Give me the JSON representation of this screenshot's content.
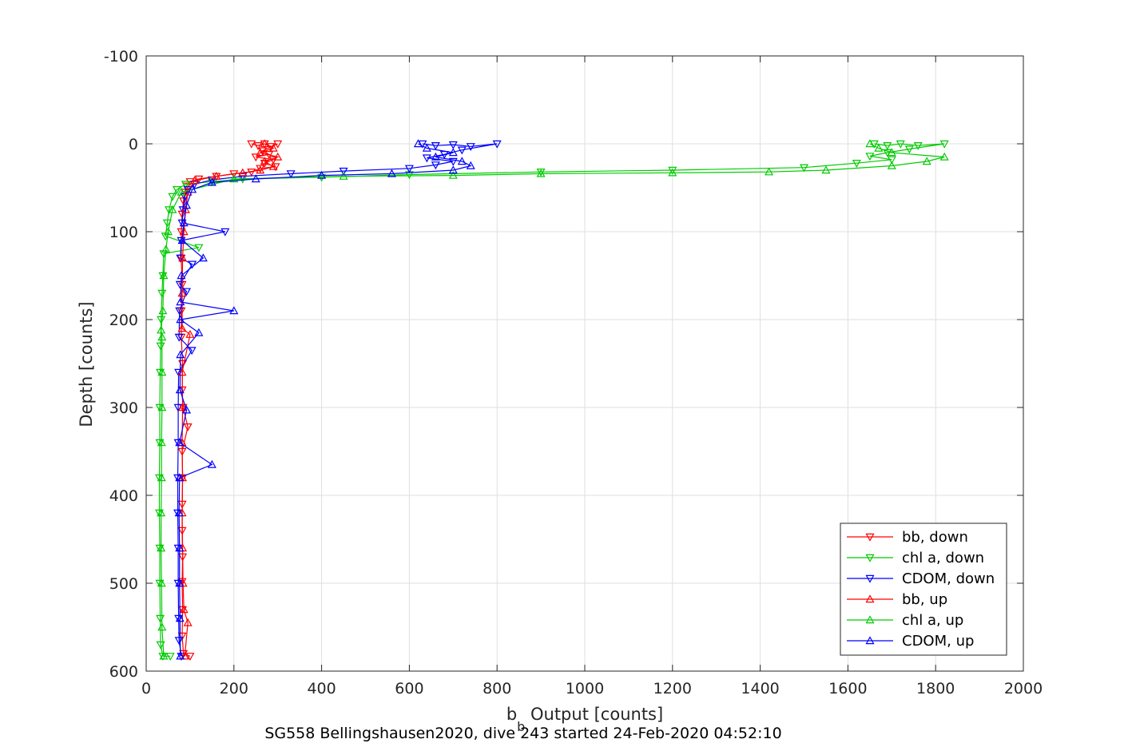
{
  "chart_data": {
    "type": "line",
    "title": "",
    "caption": "SG558 Bellingshausen2020, dive 243 started 24-Feb-2020 04:52:10",
    "xlabel_main": "b",
    "xlabel_sub": "b",
    "xlabel_rest": " Output [counts]",
    "ylabel": "Depth [counts]",
    "xlim": [
      0,
      2000
    ],
    "ylim": [
      -100,
      600
    ],
    "y_reversed": true,
    "grid": true,
    "legend_position": "bottom-right",
    "xticks": [
      "0",
      "200",
      "400",
      "600",
      "800",
      "1000",
      "1200",
      "1400",
      "1600",
      "1800",
      "2000"
    ],
    "yticks": [
      "-100",
      "0",
      "100",
      "200",
      "300",
      "400",
      "500",
      "600"
    ],
    "series": [
      {
        "name": "bb, down",
        "color": "#ff0000",
        "marker": "triangle-down",
        "points": [
          [
            240,
            0
          ],
          [
            255,
            2
          ],
          [
            270,
            0
          ],
          [
            285,
            3
          ],
          [
            300,
            0
          ],
          [
            265,
            8
          ],
          [
            280,
            12
          ],
          [
            250,
            15
          ],
          [
            290,
            18
          ],
          [
            270,
            22
          ],
          [
            295,
            26
          ],
          [
            260,
            28
          ],
          [
            240,
            32
          ],
          [
            200,
            34
          ],
          [
            160,
            37
          ],
          [
            120,
            40
          ],
          [
            100,
            43
          ],
          [
            92,
            48
          ],
          [
            88,
            55
          ],
          [
            85,
            65
          ],
          [
            82,
            80
          ],
          [
            80,
            100
          ],
          [
            80,
            130
          ],
          [
            82,
            160
          ],
          [
            80,
            190
          ],
          [
            80,
            220
          ],
          [
            83,
            250
          ],
          [
            82,
            280
          ],
          [
            84,
            300
          ],
          [
            95,
            322
          ],
          [
            82,
            350
          ],
          [
            83,
            380
          ],
          [
            82,
            410
          ],
          [
            82,
            440
          ],
          [
            83,
            470
          ],
          [
            82,
            498
          ],
          [
            83,
            530
          ],
          [
            82,
            560
          ],
          [
            85,
            580
          ],
          [
            100,
            583
          ]
        ]
      },
      {
        "name": "chl a, down",
        "color": "#00cc00",
        "marker": "triangle-down",
        "points": [
          [
            1660,
            0
          ],
          [
            1690,
            2
          ],
          [
            1720,
            0
          ],
          [
            1760,
            2
          ],
          [
            1820,
            0
          ],
          [
            1740,
            6
          ],
          [
            1690,
            10
          ],
          [
            1650,
            14
          ],
          [
            1700,
            18
          ],
          [
            1620,
            22
          ],
          [
            1500,
            27
          ],
          [
            1200,
            30
          ],
          [
            900,
            32
          ],
          [
            600,
            35
          ],
          [
            400,
            38
          ],
          [
            220,
            40
          ],
          [
            150,
            43
          ],
          [
            90,
            46
          ],
          [
            70,
            52
          ],
          [
            60,
            60
          ],
          [
            52,
            75
          ],
          [
            48,
            90
          ],
          [
            44,
            105
          ],
          [
            120,
            118
          ],
          [
            40,
            125
          ],
          [
            38,
            150
          ],
          [
            36,
            170
          ],
          [
            34,
            200
          ],
          [
            33,
            230
          ],
          [
            32,
            260
          ],
          [
            31,
            300
          ],
          [
            31,
            340
          ],
          [
            30,
            380
          ],
          [
            30,
            420
          ],
          [
            31,
            460
          ],
          [
            31,
            500
          ],
          [
            32,
            540
          ],
          [
            33,
            570
          ],
          [
            38,
            583
          ],
          [
            55,
            583
          ]
        ]
      },
      {
        "name": "CDOM, down",
        "color": "#0000ff",
        "marker": "triangle-down",
        "points": [
          [
            630,
            0
          ],
          [
            660,
            2
          ],
          [
            700,
            1
          ],
          [
            740,
            3
          ],
          [
            800,
            0
          ],
          [
            720,
            7
          ],
          [
            680,
            12
          ],
          [
            640,
            16
          ],
          [
            700,
            20
          ],
          [
            660,
            24
          ],
          [
            600,
            28
          ],
          [
            450,
            31
          ],
          [
            330,
            34
          ],
          [
            220,
            37
          ],
          [
            150,
            41
          ],
          [
            110,
            46
          ],
          [
            95,
            52
          ],
          [
            88,
            60
          ],
          [
            84,
            75
          ],
          [
            82,
            90
          ],
          [
            180,
            100
          ],
          [
            80,
            110
          ],
          [
            78,
            130
          ],
          [
            105,
            137
          ],
          [
            77,
            160
          ],
          [
            92,
            168
          ],
          [
            76,
            190
          ],
          [
            75,
            220
          ],
          [
            104,
            235
          ],
          [
            74,
            260
          ],
          [
            73,
            300
          ],
          [
            73,
            340
          ],
          [
            72,
            380
          ],
          [
            72,
            420
          ],
          [
            73,
            460
          ],
          [
            73,
            500
          ],
          [
            74,
            540
          ],
          [
            75,
            565
          ],
          [
            80,
            583
          ]
        ]
      },
      {
        "name": "bb, up",
        "color": "#ff0000",
        "marker": "triangle-up",
        "points": [
          [
            88,
            583
          ],
          [
            95,
            545
          ],
          [
            86,
            530
          ],
          [
            84,
            500
          ],
          [
            83,
            460
          ],
          [
            82,
            420
          ],
          [
            83,
            380
          ],
          [
            82,
            340
          ],
          [
            83,
            300
          ],
          [
            82,
            260
          ],
          [
            100,
            217
          ],
          [
            82,
            210
          ],
          [
            82,
            170
          ],
          [
            83,
            130
          ],
          [
            86,
            100
          ],
          [
            90,
            75
          ],
          [
            95,
            55
          ],
          [
            110,
            42
          ],
          [
            160,
            37
          ],
          [
            220,
            33
          ],
          [
            260,
            30
          ],
          [
            290,
            26
          ],
          [
            270,
            20
          ],
          [
            300,
            15
          ],
          [
            260,
            10
          ],
          [
            290,
            5
          ],
          [
            270,
            0
          ]
        ]
      },
      {
        "name": "chl a, up",
        "color": "#00cc00",
        "marker": "triangle-up",
        "points": [
          [
            40,
            583
          ],
          [
            36,
            550
          ],
          [
            35,
            500
          ],
          [
            34,
            460
          ],
          [
            34,
            420
          ],
          [
            35,
            380
          ],
          [
            35,
            340
          ],
          [
            36,
            300
          ],
          [
            36,
            260
          ],
          [
            36,
            220
          ],
          [
            34,
            212
          ],
          [
            38,
            190
          ],
          [
            40,
            150
          ],
          [
            45,
            120
          ],
          [
            50,
            100
          ],
          [
            60,
            75
          ],
          [
            80,
            55
          ],
          [
            200,
            40
          ],
          [
            450,
            37
          ],
          [
            700,
            36
          ],
          [
            900,
            34
          ],
          [
            1200,
            33
          ],
          [
            1420,
            32
          ],
          [
            1550,
            30
          ],
          [
            1700,
            25
          ],
          [
            1780,
            20
          ],
          [
            1820,
            15
          ],
          [
            1700,
            10
          ],
          [
            1670,
            5
          ],
          [
            1650,
            0
          ]
        ]
      },
      {
        "name": "CDOM, up",
        "color": "#0000ff",
        "marker": "triangle-up",
        "points": [
          [
            78,
            583
          ],
          [
            77,
            540
          ],
          [
            76,
            500
          ],
          [
            76,
            460
          ],
          [
            75,
            420
          ],
          [
            76,
            380
          ],
          [
            150,
            365
          ],
          [
            76,
            340
          ],
          [
            92,
            303
          ],
          [
            77,
            280
          ],
          [
            78,
            240
          ],
          [
            120,
            215
          ],
          [
            78,
            200
          ],
          [
            200,
            190
          ],
          [
            78,
            180
          ],
          [
            80,
            150
          ],
          [
            130,
            130
          ],
          [
            82,
            110
          ],
          [
            86,
            90
          ],
          [
            92,
            70
          ],
          [
            105,
            52
          ],
          [
            150,
            44
          ],
          [
            250,
            40
          ],
          [
            400,
            36
          ],
          [
            560,
            34
          ],
          [
            700,
            30
          ],
          [
            740,
            25
          ],
          [
            720,
            20
          ],
          [
            660,
            15
          ],
          [
            700,
            10
          ],
          [
            640,
            5
          ],
          [
            620,
            0
          ]
        ]
      }
    ]
  }
}
